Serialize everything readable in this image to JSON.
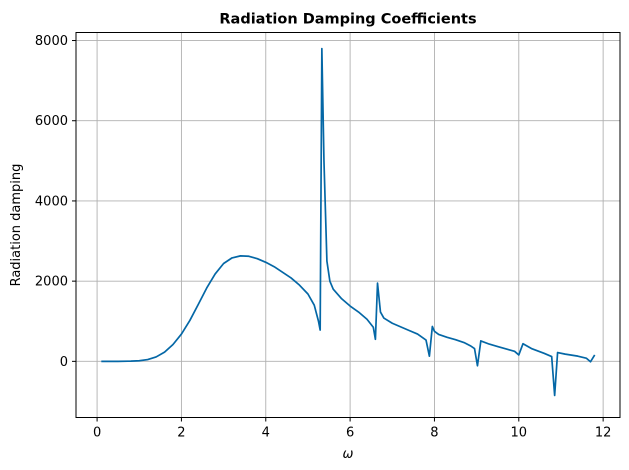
{
  "chart_data": {
    "type": "line",
    "title": "Radiation Damping Coefficients",
    "xlabel": "ω",
    "ylabel": "Radiation damping",
    "xlim": [
      -0.5,
      12.4
    ],
    "ylim": [
      -1400,
      8200
    ],
    "xticks": [
      0,
      2,
      4,
      6,
      8,
      10,
      12
    ],
    "yticks": [
      0,
      2000,
      4000,
      6000,
      8000
    ],
    "grid": true,
    "line_color": "#0467a6",
    "series": [
      {
        "x": [
          0.1,
          0.5,
          0.8,
          1.0,
          1.2,
          1.4,
          1.6,
          1.8,
          2.0,
          2.2,
          2.4,
          2.6,
          2.8,
          3.0,
          3.2,
          3.4,
          3.6,
          3.8,
          4.0,
          4.2,
          4.4,
          4.6,
          4.8,
          5.0,
          5.15,
          5.25,
          5.29,
          5.33,
          5.38,
          5.45,
          5.52,
          5.6,
          5.8,
          6.0,
          6.2,
          6.4,
          6.55,
          6.6,
          6.65,
          6.72,
          6.8,
          7.0,
          7.2,
          7.4,
          7.6,
          7.8,
          7.88,
          7.95,
          8.0,
          8.1,
          8.3,
          8.5,
          8.7,
          8.85,
          8.95,
          9.02,
          9.1,
          9.3,
          9.5,
          9.7,
          9.9,
          10.0,
          10.1,
          10.3,
          10.6,
          10.78,
          10.85,
          10.92,
          11.1,
          11.4,
          11.6,
          11.7,
          11.8
        ],
        "y": [
          0,
          0,
          5,
          15,
          45,
          110,
          230,
          420,
          680,
          1020,
          1420,
          1830,
          2180,
          2440,
          2580,
          2630,
          2620,
          2560,
          2470,
          2360,
          2220,
          2080,
          1900,
          1680,
          1400,
          1000,
          780,
          7800,
          5000,
          2500,
          2000,
          1800,
          1560,
          1380,
          1230,
          1050,
          850,
          550,
          1950,
          1230,
          1080,
          950,
          860,
          770,
          680,
          530,
          130,
          870,
          750,
          670,
          600,
          540,
          470,
          390,
          320,
          -110,
          510,
          430,
          370,
          310,
          250,
          160,
          440,
          320,
          200,
          120,
          -850,
          220,
          180,
          130,
          80,
          -10,
          160
        ]
      }
    ]
  }
}
